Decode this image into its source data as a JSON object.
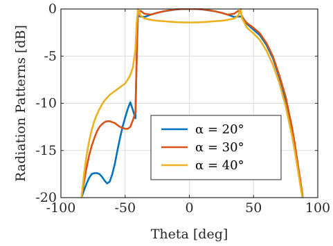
{
  "chart_data": {
    "type": "line",
    "title": "",
    "xlabel": "Theta [deg]",
    "ylabel": "Radiation Patterns [dB]",
    "xlim": [
      -100,
      100
    ],
    "ylim": [
      -20,
      0
    ],
    "xticks": [
      -100,
      -50,
      0,
      50,
      100
    ],
    "yticks": [
      0,
      -5,
      -10,
      -15,
      -20
    ],
    "grid": true,
    "legend_position": "lower-right",
    "series": [
      {
        "name": "α = 20°",
        "color": "#0072BD",
        "x": [
          -84,
          -82,
          -80,
          -78,
          -76,
          -74,
          -72,
          -70,
          -68,
          -66,
          -64,
          -62,
          -60,
          -58,
          -56,
          -54,
          -52,
          -50,
          -48,
          -46,
          -44,
          -42,
          -40.5,
          -40,
          -38,
          -35,
          -30,
          -25,
          -20,
          -15,
          -10,
          -5,
          0,
          5,
          10,
          15,
          20,
          25,
          30,
          35,
          38,
          40,
          41.5,
          45,
          50,
          55,
          60,
          65,
          70,
          75,
          80,
          82,
          84,
          86,
          88,
          89
        ],
        "y": [
          -20,
          -19.2,
          -18.5,
          -17.9,
          -17.5,
          -17.4,
          -17.4,
          -17.5,
          -17.8,
          -18.2,
          -18.5,
          -18.3,
          -17.5,
          -16.4,
          -15,
          -13.7,
          -12.5,
          -11.5,
          -10.6,
          -9.9,
          -10.7,
          -11.6,
          -1.8,
          -0.7,
          -0.8,
          -0.85,
          -0.6,
          -0.4,
          -0.25,
          -0.15,
          -0.05,
          0,
          0,
          0,
          -0.05,
          -0.15,
          -0.25,
          -0.4,
          -0.6,
          -0.85,
          -0.8,
          -0.8,
          -0.9,
          -1.6,
          -2.2,
          -2.8,
          -3.8,
          -5.2,
          -7.2,
          -9.7,
          -13,
          -14.5,
          -16.3,
          -18,
          -19.8,
          -21
        ]
      },
      {
        "name": "α = 30°",
        "color": "#D95319",
        "x": [
          -84,
          -82,
          -80,
          -78,
          -76,
          -74,
          -72,
          -70,
          -68,
          -66,
          -64,
          -62,
          -60,
          -58,
          -56,
          -54,
          -52,
          -50,
          -48,
          -46,
          -44,
          -42,
          -41.5,
          -40,
          -38,
          -35,
          -30,
          -25,
          -20,
          -15,
          -10,
          -5,
          0,
          5,
          10,
          15,
          20,
          25,
          30,
          35,
          38,
          40,
          41.5,
          45,
          50,
          55,
          60,
          65,
          70,
          75,
          80,
          82,
          84,
          86,
          88,
          89
        ],
        "y": [
          -20,
          -18.3,
          -16.8,
          -15.5,
          -14.5,
          -13.7,
          -13,
          -12.5,
          -12.2,
          -12,
          -11.9,
          -11.9,
          -12,
          -12.1,
          -12.3,
          -12.5,
          -12.6,
          -12.7,
          -12.7,
          -12.5,
          -11.8,
          -11,
          -8,
          -0.3,
          -0.2,
          -0.5,
          -0.6,
          -0.4,
          -0.25,
          -0.12,
          -0.03,
          0,
          0,
          0,
          -0.03,
          -0.12,
          -0.25,
          -0.4,
          -0.6,
          -0.5,
          -0.2,
          -0.3,
          -1.0,
          -1.5,
          -2.0,
          -2.6,
          -3.6,
          -5.0,
          -7.0,
          -9.3,
          -12.6,
          -14.2,
          -16,
          -17.8,
          -19.6,
          -21
        ]
      },
      {
        "name": "α = 40°",
        "color": "#EDB120",
        "x": [
          -84,
          -82,
          -80,
          -78,
          -76,
          -74,
          -72,
          -70,
          -68,
          -66,
          -64,
          -62,
          -60,
          -58,
          -56,
          -54,
          -52,
          -50,
          -48,
          -46,
          -44,
          -42,
          -41,
          -40,
          -38,
          -35,
          -30,
          -25,
          -20,
          -15,
          -10,
          -5,
          0,
          5,
          10,
          15,
          20,
          25,
          30,
          35,
          38,
          40,
          41,
          45,
          50,
          55,
          60,
          65,
          70,
          75,
          80,
          82,
          84,
          86,
          88,
          89
        ],
        "y": [
          -20,
          -17.5,
          -15.5,
          -14,
          -12.8,
          -11.9,
          -11.2,
          -10.6,
          -10.1,
          -9.7,
          -9.4,
          -9.1,
          -8.9,
          -8.7,
          -8.5,
          -8.3,
          -8.1,
          -7.9,
          -7.5,
          -7,
          -6.2,
          -4.3,
          -1.5,
          0,
          -0.7,
          -1.0,
          -1.15,
          -1.25,
          -1.3,
          -1.35,
          -1.4,
          -1.42,
          -1.43,
          -1.42,
          -1.4,
          -1.35,
          -1.3,
          -1.25,
          -1.15,
          -1.0,
          -0.7,
          0,
          -1.0,
          -2.0,
          -2.6,
          -3.3,
          -4.4,
          -5.9,
          -7.8,
          -10.3,
          -13.5,
          -15,
          -16.6,
          -18.3,
          -20,
          -21
        ]
      }
    ]
  }
}
